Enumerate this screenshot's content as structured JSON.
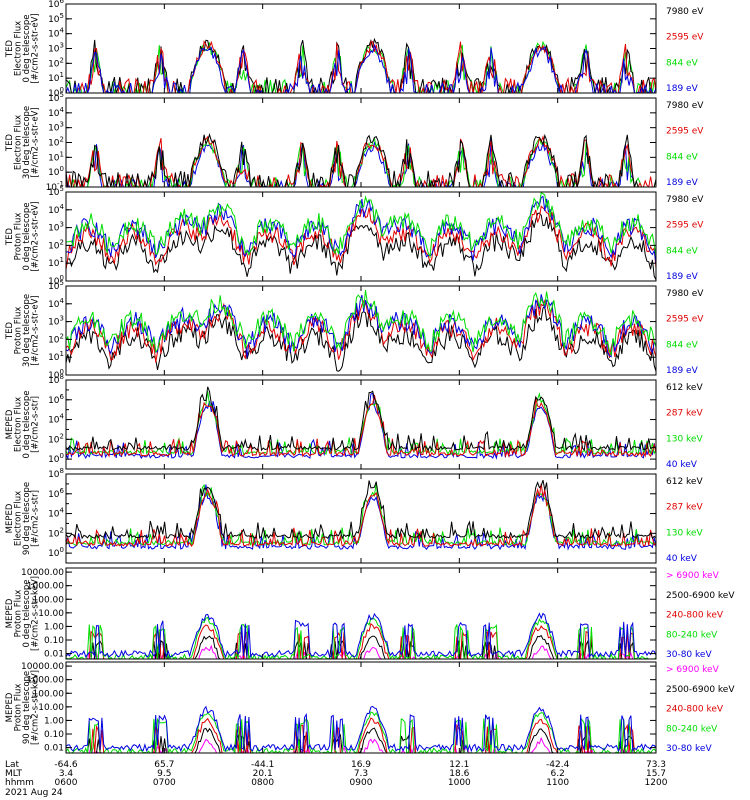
{
  "colors": {
    "black": "#000000",
    "red": "#e00000",
    "green": "#00dd00",
    "blue": "#0000e0",
    "magenta": "#ff00ff"
  },
  "chart_data": [
    {
      "type": "line",
      "ylabel": [
        "TED",
        "Electron Flux",
        "0 deg telescope",
        "[#/cm2-s-str-eV]"
      ],
      "yscale": "log",
      "ylim": [
        1,
        1000000
      ],
      "ytick_labels": [
        "10^0",
        "10^1",
        "10^2",
        "10^3",
        "10^4",
        "10^5",
        "10^6"
      ],
      "legend": [
        {
          "label": "7980 eV",
          "color": "black"
        },
        {
          "label": "2595 eV",
          "color": "red"
        },
        {
          "label": "844 eV",
          "color": "green"
        },
        {
          "label": "189 eV",
          "color": "blue"
        }
      ]
    },
    {
      "type": "line",
      "ylabel": [
        "TED",
        "Electron Flux",
        "30 deg telescope",
        "[#/cm2-s-str-eV]"
      ],
      "yscale": "log",
      "ylim": [
        0.1,
        100000
      ],
      "ytick_labels": [
        "10^-1",
        "10^0",
        "10^1",
        "10^2",
        "10^3",
        "10^4",
        "10^5"
      ],
      "legend": [
        {
          "label": "7980 eV",
          "color": "black"
        },
        {
          "label": "2595 eV",
          "color": "red"
        },
        {
          "label": "844 eV",
          "color": "green"
        },
        {
          "label": "189 eV",
          "color": "blue"
        }
      ]
    },
    {
      "type": "line",
      "ylabel": [
        "TED",
        "Proton Flux",
        "0 deg telescope",
        "[#/cm2-s-str-eV]"
      ],
      "yscale": "log",
      "ylim": [
        1,
        100000
      ],
      "ytick_labels": [
        "10^0",
        "10^1",
        "10^2",
        "10^3",
        "10^4",
        "10^5"
      ],
      "legend": [
        {
          "label": "7980 eV",
          "color": "black"
        },
        {
          "label": "2595 eV",
          "color": "red"
        },
        {
          "label": "844 eV",
          "color": "green"
        },
        {
          "label": "189 eV",
          "color": "blue"
        }
      ]
    },
    {
      "type": "line",
      "ylabel": [
        "TED",
        "Proton Flux",
        "30 deg telescope",
        "[#/cm2-s-str-eV]"
      ],
      "yscale": "log",
      "ylim": [
        1,
        100000
      ],
      "ytick_labels": [
        "10^0",
        "10^1",
        "10^2",
        "10^3",
        "10^4",
        "10^5"
      ],
      "legend": [
        {
          "label": "7980 eV",
          "color": "black"
        },
        {
          "label": "2595 eV",
          "color": "red"
        },
        {
          "label": "844 eV",
          "color": "green"
        },
        {
          "label": "189 eV",
          "color": "blue"
        }
      ]
    },
    {
      "type": "line",
      "ylabel": [
        "MEPED",
        "Electron Flux",
        "0 deg telescope",
        "[#/cm2-s-str]"
      ],
      "yscale": "log",
      "ylim": [
        0.1,
        100000000
      ],
      "ytick_labels": [
        "10^0",
        "10^2",
        "10^4",
        "10^6",
        "10^8"
      ],
      "legend": [
        {
          "label": "612 keV",
          "color": "black"
        },
        {
          "label": "287 keV",
          "color": "red"
        },
        {
          "label": "130 keV",
          "color": "green"
        },
        {
          "label": "40 keV",
          "color": "blue"
        }
      ]
    },
    {
      "type": "line",
      "ylabel": [
        "MEPED",
        "Electron Flux",
        "90 deg telescope",
        "[#/cm2-s-str]"
      ],
      "yscale": "log",
      "ylim": [
        0.1,
        100000000
      ],
      "ytick_labels": [
        "10^0",
        "10^2",
        "10^4",
        "10^6",
        "10^8"
      ],
      "legend": [
        {
          "label": "612 keV",
          "color": "black"
        },
        {
          "label": "287 keV",
          "color": "red"
        },
        {
          "label": "130 keV",
          "color": "green"
        },
        {
          "label": "40 keV",
          "color": "blue"
        }
      ]
    },
    {
      "type": "line",
      "ylabel": [
        "MEPED",
        "Proton Flux",
        "0 deg telescope",
        "[#/cm2-s-str-keV]"
      ],
      "yscale": "log",
      "ylim": [
        0.004,
        20000
      ],
      "ytick_labels": [
        "0.01",
        "0.10",
        "1.00",
        "10.00",
        "100.00",
        "1000.00",
        "10000.00"
      ],
      "legend": [
        {
          "label": "> 6900 keV",
          "color": "magenta"
        },
        {
          "label": "2500-6900 keV",
          "color": "black"
        },
        {
          "label": "240-800 keV",
          "color": "red"
        },
        {
          "label": "80-240 keV",
          "color": "green"
        },
        {
          "label": "30-80 keV",
          "color": "blue"
        }
      ]
    },
    {
      "type": "line",
      "ylabel": [
        "MEPED",
        "Proton Flux",
        "90 deg telescope",
        "[#/cm2-s-str-keV]"
      ],
      "yscale": "log",
      "ylim": [
        0.004,
        20000
      ],
      "ytick_labels": [
        "0.01",
        "0.10",
        "1.00",
        "10.00",
        "100.00",
        "1000.00",
        "10000.00"
      ],
      "legend": [
        {
          "label": "> 6900 keV",
          "color": "magenta"
        },
        {
          "label": "2500-6900 keV",
          "color": "black"
        },
        {
          "label": "240-800 keV",
          "color": "red"
        },
        {
          "label": "80-240 keV",
          "color": "green"
        },
        {
          "label": "30-80 keV",
          "color": "blue"
        }
      ]
    }
  ],
  "x_axis": {
    "row_labels": [
      "Lat",
      "MLT",
      "hhmm",
      "2021 Aug 24"
    ],
    "ticks": [
      {
        "lat": "-64.6",
        "mlt": "3.4",
        "time": "0600"
      },
      {
        "lat": "65.7",
        "mlt": "9.5",
        "time": "0700"
      },
      {
        "lat": "-44.1",
        "mlt": "20.1",
        "time": "0800"
      },
      {
        "lat": "16.9",
        "mlt": "7.3",
        "time": "0900"
      },
      {
        "lat": "12.1",
        "mlt": "18.6",
        "time": "1000"
      },
      {
        "lat": "-42.4",
        "mlt": "6.2",
        "time": "1100"
      },
      {
        "lat": "73.3",
        "mlt": "15.7",
        "time": "1200"
      }
    ]
  }
}
